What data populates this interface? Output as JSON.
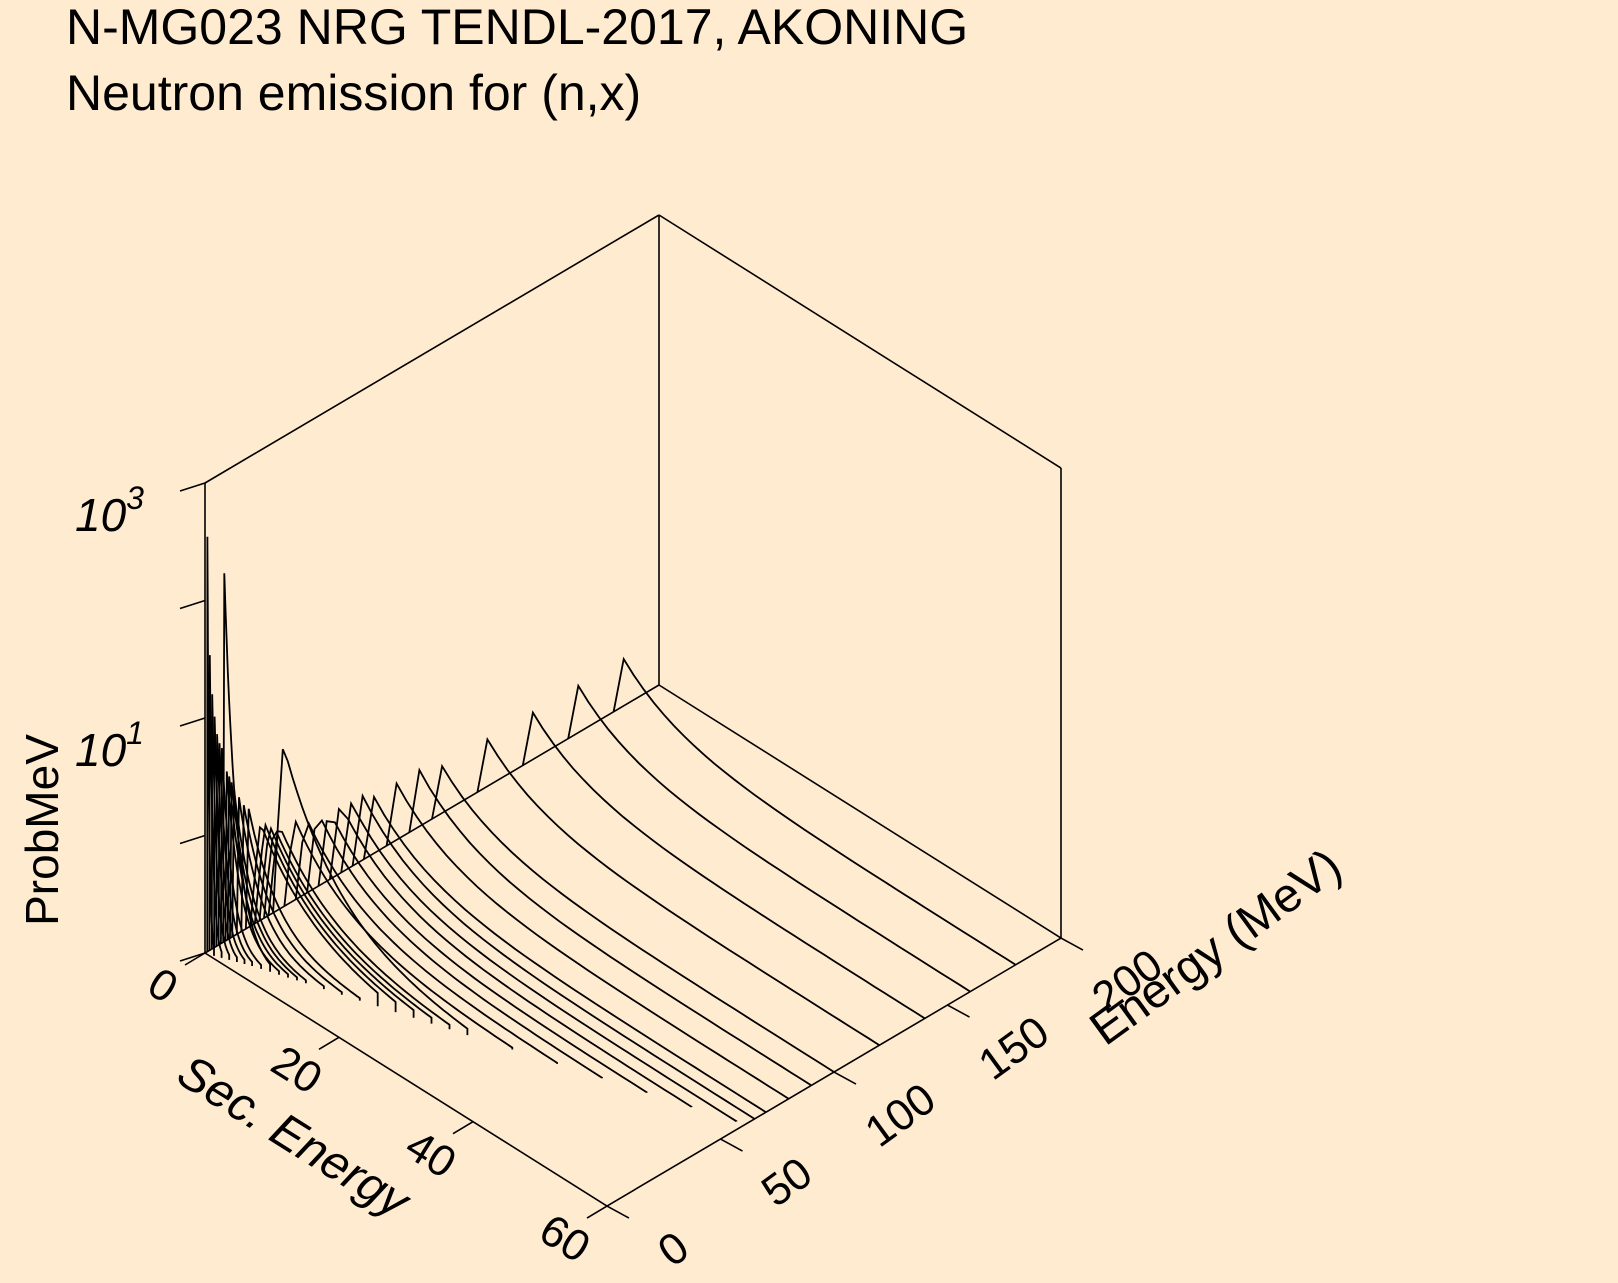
{
  "title": "N-MG023 NRG TENDL-2017, AKONING",
  "subtitle": "Neutron emission for (n,x)",
  "colors": {
    "background": "#ffebd0",
    "ink": "#000000"
  },
  "chart_data": {
    "type": "line",
    "projection": "3d-waterfall",
    "title": "N-MG023 NRG TENDL-2017, AKONING",
    "subtitle": "Neutron emission for (n,x)",
    "x_axis": {
      "label": "Sec. Energy",
      "range": [
        0,
        60
      ],
      "ticks": [
        "0",
        "20",
        "40",
        "60"
      ]
    },
    "y_axis": {
      "label": "Energy (MeV)",
      "range": [
        0,
        200
      ],
      "ticks": [
        "0",
        "50",
        "100",
        "150",
        "200"
      ]
    },
    "z_axis": {
      "label": "ProbMeV",
      "scale": "log",
      "range": [
        0.1,
        1000
      ],
      "major_ticks": [
        {
          "base": "10",
          "exp": "1"
        },
        {
          "base": "10",
          "exp": "3"
        }
      ]
    },
    "grid": false,
    "legend": "none",
    "series": [
      {
        "incident_energy": 1,
        "max_sec_energy": 1.0,
        "peak": 800
      },
      {
        "incident_energy": 2,
        "max_sec_energy": 1.8,
        "peak": 60
      },
      {
        "incident_energy": 3,
        "max_sec_energy": 2.6,
        "peak": 25
      },
      {
        "incident_energy": 4,
        "max_sec_energy": 3.4,
        "peak": 15
      },
      {
        "incident_energy": 5,
        "max_sec_energy": 4.2,
        "peak": 10
      },
      {
        "incident_energy": 6,
        "max_sec_energy": 5.0,
        "peak": 8
      },
      {
        "incident_energy": 7,
        "max_sec_energy": 6.0,
        "peak": 7
      },
      {
        "incident_energy": 8,
        "max_sec_energy": 7.0,
        "peak": 300
      },
      {
        "incident_energy": 9,
        "max_sec_energy": 8.0,
        "peak": 4
      },
      {
        "incident_energy": 10,
        "max_sec_energy": 9.0,
        "peak": 3.5
      },
      {
        "incident_energy": 11,
        "max_sec_energy": 10.0,
        "peak": 3
      },
      {
        "incident_energy": 12,
        "max_sec_energy": 11.0,
        "peak": 2.5
      },
      {
        "incident_energy": 14,
        "max_sec_energy": 13.0,
        "peak": 2
      },
      {
        "incident_energy": 16,
        "max_sec_energy": 15.0,
        "peak": 1.6
      },
      {
        "incident_energy": 18,
        "max_sec_energy": 17.0,
        "peak": 1.4
      },
      {
        "incident_energy": 20,
        "max_sec_energy": 19.0,
        "peak": 1.3
      },
      {
        "incident_energy": 22,
        "max_sec_energy": 21.0,
        "peak": 1.2
      },
      {
        "incident_energy": 24,
        "max_sec_energy": 23.0,
        "peak": 1.1
      },
      {
        "incident_energy": 26,
        "max_sec_energy": 25.0,
        "peak": 1.0
      },
      {
        "incident_energy": 28,
        "max_sec_energy": 27.0,
        "peak": 1.0
      },
      {
        "incident_energy": 30,
        "max_sec_energy": 29.0,
        "peak": 6
      },
      {
        "incident_energy": 35,
        "max_sec_energy": 34.0,
        "peak": 0.9
      },
      {
        "incident_energy": 40,
        "max_sec_energy": 39.0,
        "peak": 0.8
      },
      {
        "incident_energy": 45,
        "max_sec_energy": 44.0,
        "peak": 0.8
      },
      {
        "incident_energy": 50,
        "max_sec_energy": 49.0,
        "peak": 0.7
      },
      {
        "incident_energy": 55,
        "max_sec_energy": 54.0,
        "peak": 0.7
      },
      {
        "incident_energy": 60,
        "max_sec_energy": 59.0,
        "peak": 0.6
      },
      {
        "incident_energy": 65,
        "max_sec_energy": 60.0,
        "peak": 0.6
      },
      {
        "incident_energy": 70,
        "max_sec_energy": 60.0,
        "peak": 0.5
      },
      {
        "incident_energy": 80,
        "max_sec_energy": 60.0,
        "peak": 0.5
      },
      {
        "incident_energy": 90,
        "max_sec_energy": 60.0,
        "peak": 0.5
      },
      {
        "incident_energy": 100,
        "max_sec_energy": 60.0,
        "peak": 0.4
      },
      {
        "incident_energy": 120,
        "max_sec_energy": 60.0,
        "peak": 0.4
      },
      {
        "incident_energy": 140,
        "max_sec_energy": 60.0,
        "peak": 0.4
      },
      {
        "incident_energy": 160,
        "max_sec_energy": 60.0,
        "peak": 0.4
      },
      {
        "incident_energy": 180,
        "max_sec_energy": 60.0,
        "peak": 0.4
      }
    ]
  }
}
